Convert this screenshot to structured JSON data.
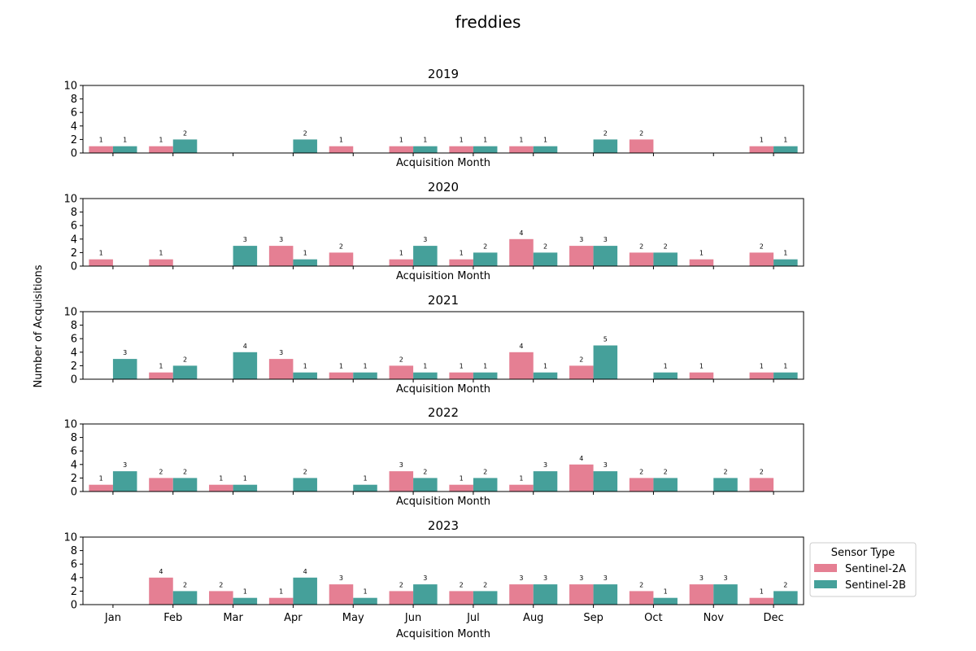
{
  "chart_data": {
    "type": "bar",
    "title": "freddies",
    "ylabel": "Number of Acquisitions",
    "xlabel": "Acquisition Month",
    "categories": [
      "Jan",
      "Feb",
      "Mar",
      "Apr",
      "May",
      "Jun",
      "Jul",
      "Aug",
      "Sep",
      "Oct",
      "Nov",
      "Dec"
    ],
    "ylim": [
      0,
      10
    ],
    "yticks": [
      "0",
      "2",
      "4",
      "6",
      "8",
      "10"
    ],
    "legend": {
      "title": "Sensor Type",
      "placement": "right of last subplot",
      "entries": [
        "Sentinel-2A",
        "Sentinel-2B"
      ]
    },
    "colors": {
      "Sentinel-2A": "#e57f93",
      "Sentinel-2B": "#45a09a"
    },
    "panels": [
      {
        "title": "2019",
        "series": [
          {
            "name": "Sentinel-2A",
            "values": [
              1,
              1,
              null,
              null,
              1,
              1,
              1,
              1,
              null,
              2,
              null,
              1
            ]
          },
          {
            "name": "Sentinel-2B",
            "values": [
              1,
              2,
              null,
              2,
              null,
              1,
              1,
              1,
              2,
              null,
              null,
              1
            ]
          }
        ]
      },
      {
        "title": "2020",
        "series": [
          {
            "name": "Sentinel-2A",
            "values": [
              1,
              1,
              null,
              3,
              2,
              1,
              1,
              4,
              3,
              2,
              1,
              2
            ]
          },
          {
            "name": "Sentinel-2B",
            "values": [
              null,
              null,
              3,
              1,
              null,
              3,
              2,
              2,
              3,
              2,
              null,
              1
            ]
          }
        ]
      },
      {
        "title": "2021",
        "series": [
          {
            "name": "Sentinel-2A",
            "values": [
              null,
              1,
              null,
              3,
              1,
              2,
              1,
              4,
              2,
              null,
              1,
              1
            ]
          },
          {
            "name": "Sentinel-2B",
            "values": [
              3,
              2,
              4,
              1,
              1,
              1,
              1,
              1,
              5,
              1,
              null,
              1
            ]
          }
        ]
      },
      {
        "title": "2022",
        "series": [
          {
            "name": "Sentinel-2A",
            "values": [
              1,
              2,
              1,
              null,
              null,
              3,
              1,
              1,
              4,
              2,
              null,
              2
            ]
          },
          {
            "name": "Sentinel-2B",
            "values": [
              3,
              2,
              1,
              2,
              1,
              2,
              2,
              3,
              3,
              2,
              2,
              null
            ]
          }
        ]
      },
      {
        "title": "2023",
        "series": [
          {
            "name": "Sentinel-2A",
            "values": [
              null,
              4,
              2,
              1,
              3,
              2,
              2,
              3,
              3,
              2,
              3,
              1
            ]
          },
          {
            "name": "Sentinel-2B",
            "values": [
              null,
              2,
              1,
              4,
              1,
              3,
              2,
              3,
              3,
              1,
              3,
              2
            ]
          }
        ]
      }
    ]
  }
}
